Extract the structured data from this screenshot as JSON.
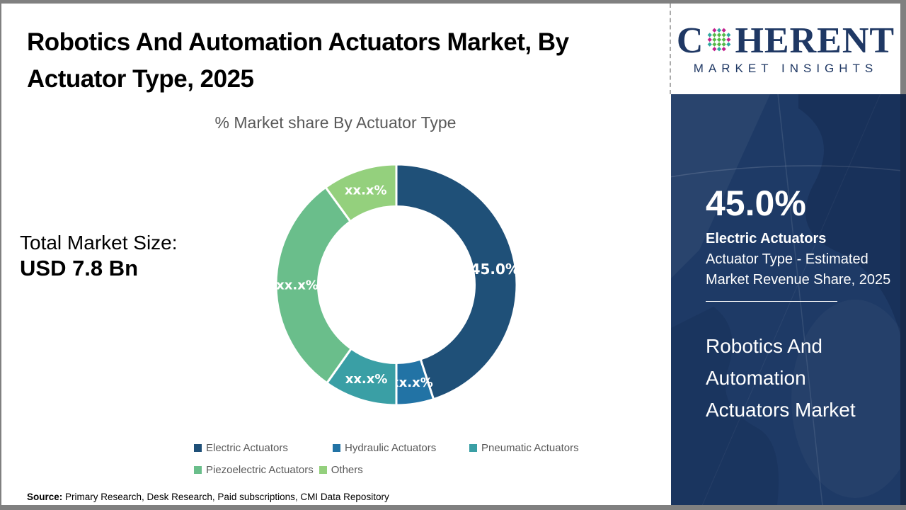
{
  "palette": {
    "frame_gray": "#808080",
    "navy_sidebar": "#1E3A66",
    "logo_navy": "#1F3864",
    "title_black": "#000000",
    "text_gray": "#595959",
    "logo_teal": "#2FA8A0",
    "logo_green": "#56B948",
    "logo_magenta": "#C2208E"
  },
  "header": {
    "title_lines": [
      "Robotics And Automation Actuators Market, By",
      "Actuator Type, 2025"
    ]
  },
  "logo": {
    "prefix": "C",
    "suffix": "HERENT",
    "tagline": "MARKET INSIGHTS"
  },
  "left_panel": {
    "total_label": "Total Market Size:",
    "total_value": "USD 7.8 Bn"
  },
  "chart_data": {
    "type": "pie",
    "subtype": "donut",
    "title": "% Market share By Actuator Type",
    "categories": [
      "Electric Actuators",
      "Hydraulic Actuators",
      "Pneumatic Actuators",
      "Piezoelectric Actuators",
      "Others"
    ],
    "values": [
      45.0,
      5.0,
      9.8,
      30.2,
      10.0
    ],
    "value_labels": [
      "45.0%",
      "xx.x%",
      "xx.x%",
      "xx.x%",
      "xx.x%"
    ],
    "colors": [
      "#1F5078",
      "#2273A5",
      "#3A9FA5",
      "#6ABE8B",
      "#94D07D"
    ],
    "start_angle_deg": 0,
    "direction": "clockwise",
    "inner_radius_ratio": 0.65,
    "legend_position": "bottom"
  },
  "sidebar": {
    "stat_value": "45.0%",
    "stat_title": "Electric Actuators",
    "stat_description": "Actuator Type - Estimated Market Revenue Share, 2025",
    "market_name": "Robotics And Automation Actuators Market"
  },
  "footer": {
    "source_label": "Source:",
    "source_text": "Primary Research, Desk Research, Paid subscriptions, CMI Data Repository"
  }
}
